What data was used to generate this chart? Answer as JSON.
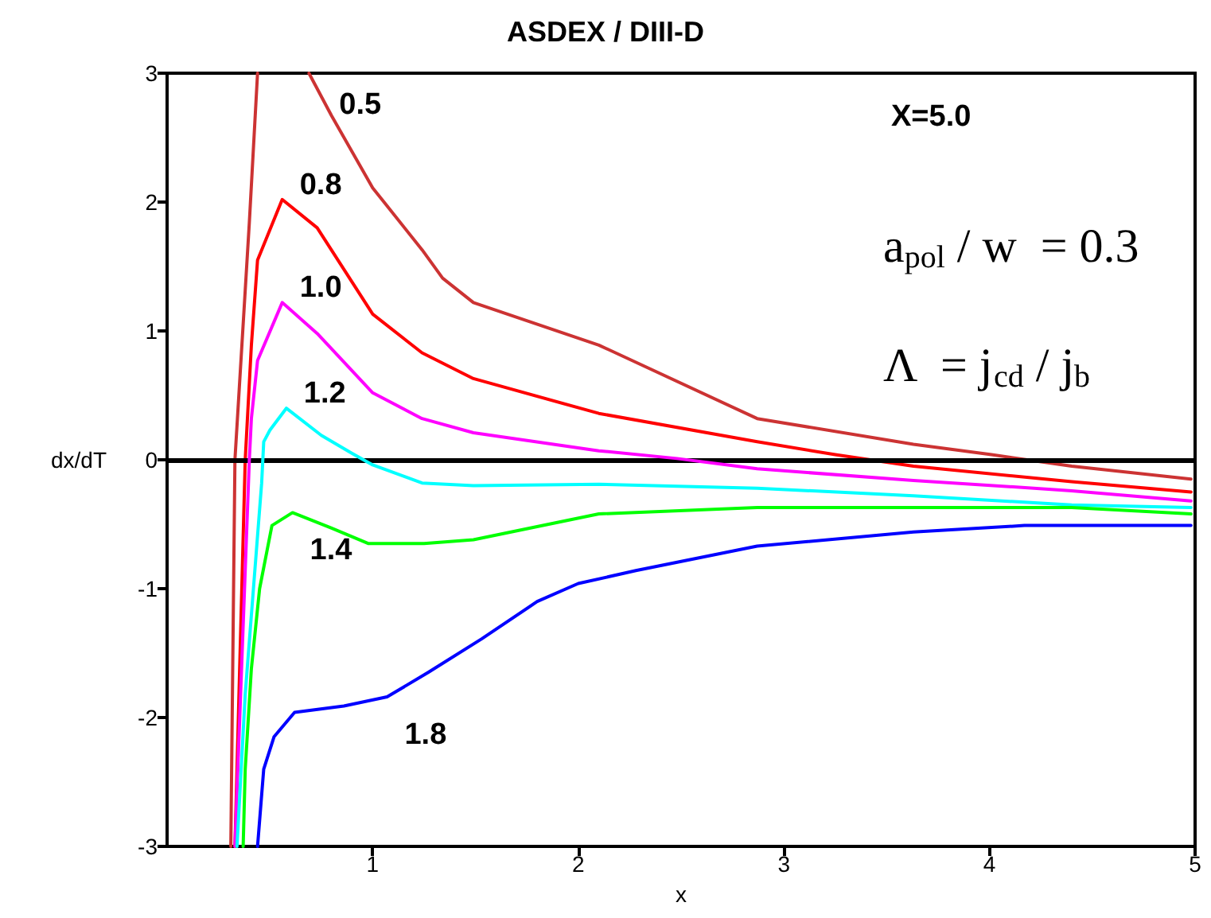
{
  "chart_data": {
    "type": "line",
    "title": "ASDEX / DIII-D",
    "xlabel": "x",
    "ylabel": "dx/dT",
    "annotations": [
      "X=5.0",
      "a$_{pol}$ / w  = 0.3",
      "Λ  = j$_{cd}$ / j$_{b}$"
    ],
    "xlim": [
      0,
      5
    ],
    "xticks": [
      1,
      2,
      3,
      4,
      5
    ],
    "ylim": [
      -3,
      3
    ],
    "yticks": [
      -3,
      -2,
      -1,
      0,
      1,
      2,
      3
    ],
    "grid": false,
    "legend": false,
    "marker": "none",
    "line_style": "solid",
    "ref_lines": [
      {
        "axis": "y",
        "value": 0,
        "color": "#000000"
      }
    ],
    "series": [
      {
        "name": "0.5",
        "color": "#cc3333",
        "x": [
          0.31,
          0.33,
          0.4,
          0.44,
          0.5,
          0.69,
          0.8,
          1.0,
          1.24,
          1.34,
          1.49,
          2.1,
          2.87,
          3.63,
          4.01,
          4.4,
          4.98
        ],
        "values": [
          -3,
          0,
          1.84,
          3,
          null,
          3,
          2.67,
          2.11,
          1.63,
          1.41,
          1.22,
          0.89,
          0.32,
          0.12,
          0.04,
          -0.05,
          -0.15
        ]
      },
      {
        "name": "0.8",
        "color": "#ff0000",
        "x": [
          0.33,
          0.38,
          0.41,
          0.44,
          0.56,
          0.73,
          1.0,
          1.24,
          1.49,
          2.1,
          2.87,
          3.25,
          3.63,
          4.4,
          4.98
        ],
        "values": [
          -3,
          0,
          0.89,
          1.55,
          2.02,
          1.8,
          1.13,
          0.83,
          0.63,
          0.36,
          0.14,
          0.04,
          -0.05,
          -0.17,
          -0.25
        ]
      },
      {
        "name": "1.0",
        "color": "#ff00ff",
        "x": [
          0.33,
          0.4,
          0.41,
          0.44,
          0.56,
          0.73,
          1.0,
          1.24,
          1.49,
          2.1,
          2.48,
          2.87,
          3.63,
          4.4,
          4.98
        ],
        "values": [
          -3,
          0,
          0.32,
          0.77,
          1.22,
          0.98,
          0.52,
          0.32,
          0.21,
          0.07,
          0.01,
          -0.07,
          -0.16,
          -0.24,
          -0.32
        ]
      },
      {
        "name": "1.2",
        "color": "#00ffff",
        "x": [
          0.34,
          0.38,
          0.46,
          0.47,
          0.5,
          0.58,
          0.75,
          0.9,
          1.0,
          1.24,
          1.49,
          2.1,
          2.87,
          3.63,
          4.4,
          4.98
        ],
        "values": [
          -3,
          -1.82,
          -0.18,
          0.14,
          0.23,
          0.4,
          0.19,
          0.05,
          -0.04,
          -0.18,
          -0.2,
          -0.19,
          -0.22,
          -0.28,
          -0.35,
          -0.37
        ]
      },
      {
        "name": "1.4",
        "color": "#00ff00",
        "x": [
          0.37,
          0.38,
          0.41,
          0.45,
          0.51,
          0.61,
          0.8,
          0.98,
          1.25,
          1.49,
          2.1,
          2.87,
          3.63,
          4.4,
          4.98
        ],
        "values": [
          -3,
          -2.4,
          -1.62,
          -1.0,
          -0.51,
          -0.41,
          -0.53,
          -0.65,
          -0.65,
          -0.62,
          -0.42,
          -0.37,
          -0.37,
          -0.37,
          -0.42
        ]
      },
      {
        "name": "1.8",
        "color": "#0000ff",
        "x": [
          0.44,
          0.47,
          0.52,
          0.62,
          0.86,
          1.07,
          1.27,
          1.53,
          1.8,
          2.0,
          2.28,
          2.87,
          3.63,
          4.17,
          4.98
        ],
        "values": [
          -3,
          -2.4,
          -2.15,
          -1.96,
          -1.91,
          -1.84,
          -1.65,
          -1.39,
          -1.1,
          -0.96,
          -0.86,
          -0.67,
          -0.56,
          -0.51,
          -0.51
        ]
      }
    ]
  }
}
